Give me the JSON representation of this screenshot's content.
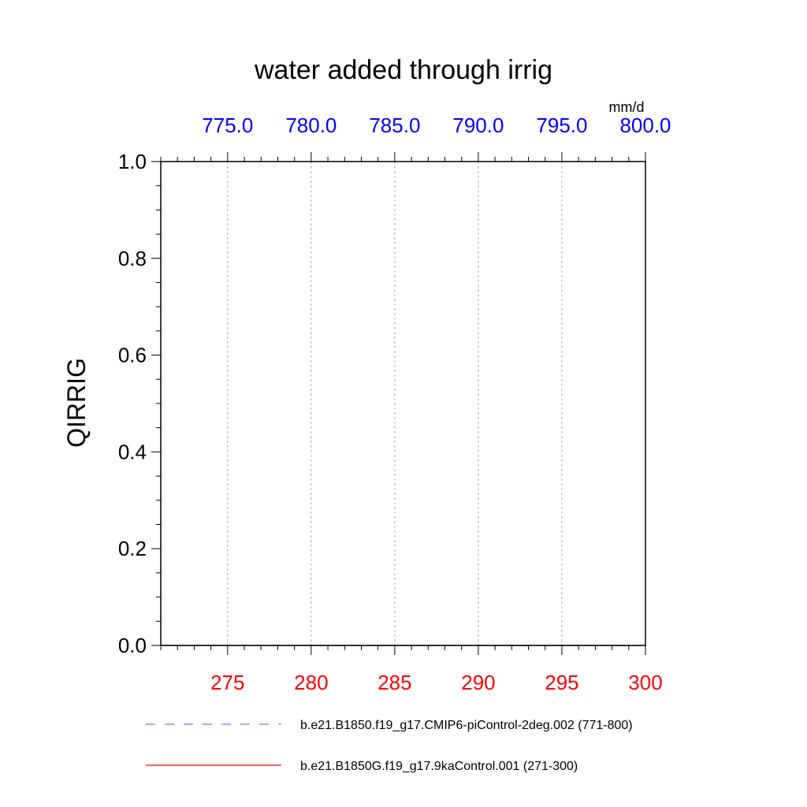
{
  "chart_data": {
    "type": "line",
    "title": "water added through irrig",
    "ylabel": "QIRRIG",
    "units": "mm/d",
    "ylim": [
      0.0,
      1.0
    ],
    "yticks": [
      "0.0",
      "0.2",
      "0.4",
      "0.6",
      "0.8",
      "1.0"
    ],
    "x_bottom": {
      "range": [
        271,
        300
      ],
      "ticks": [
        "275",
        "280",
        "285",
        "290",
        "295",
        "300"
      ],
      "color": "#ff0000"
    },
    "x_top": {
      "range": [
        771,
        800
      ],
      "ticks": [
        "775.0",
        "780.0",
        "785.0",
        "790.0",
        "795.0",
        "800.0"
      ],
      "color": "#0000ff"
    },
    "grid": true,
    "legend_position": "bottom",
    "series": [
      {
        "name": "b.e21.B1850.f19_g17.CMIP6-piControl-2deg.002 (771-800)",
        "color": "#7777ff",
        "dashed": true,
        "axis": "top",
        "x": [
          771,
          775,
          780,
          785,
          790,
          795,
          800
        ],
        "values": [
          0,
          0,
          0,
          0,
          0,
          0,
          0
        ]
      },
      {
        "name": "b.e21.B1850G.f19_g17.9kaControl.001 (271-300)",
        "color": "#ff0000",
        "dashed": false,
        "axis": "bottom",
        "x": [
          271,
          275,
          280,
          285,
          290,
          295,
          300
        ],
        "values": [
          0,
          0,
          0,
          0,
          0,
          0,
          0
        ]
      }
    ]
  }
}
